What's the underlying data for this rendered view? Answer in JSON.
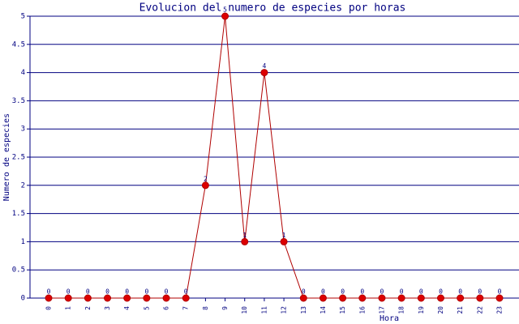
{
  "chart_data": {
    "type": "line",
    "title": "Evolucion del numero de especies por horas",
    "x_label": "Hora",
    "y_label": "Numero de especies",
    "categories": [
      "0",
      "1",
      "2",
      "3",
      "4",
      "5",
      "6",
      "7",
      "8",
      "9",
      "10",
      "11",
      "12",
      "13",
      "14",
      "15",
      "16",
      "17",
      "18",
      "19",
      "20",
      "21",
      "22",
      "23"
    ],
    "series": [
      {
        "name": "Numero de especies",
        "color": "#b00000",
        "values": [
          0,
          0,
          0,
          0,
          0,
          0,
          0,
          0,
          2,
          5,
          1,
          4,
          1,
          0,
          0,
          0,
          0,
          0,
          0,
          0,
          0,
          0,
          0,
          0
        ]
      }
    ],
    "ylim": [
      0,
      5
    ],
    "yticks": [
      0,
      0.5,
      1,
      1.5,
      2,
      2.5,
      3,
      3.5,
      4,
      4.5,
      5
    ],
    "grid": true
  }
}
